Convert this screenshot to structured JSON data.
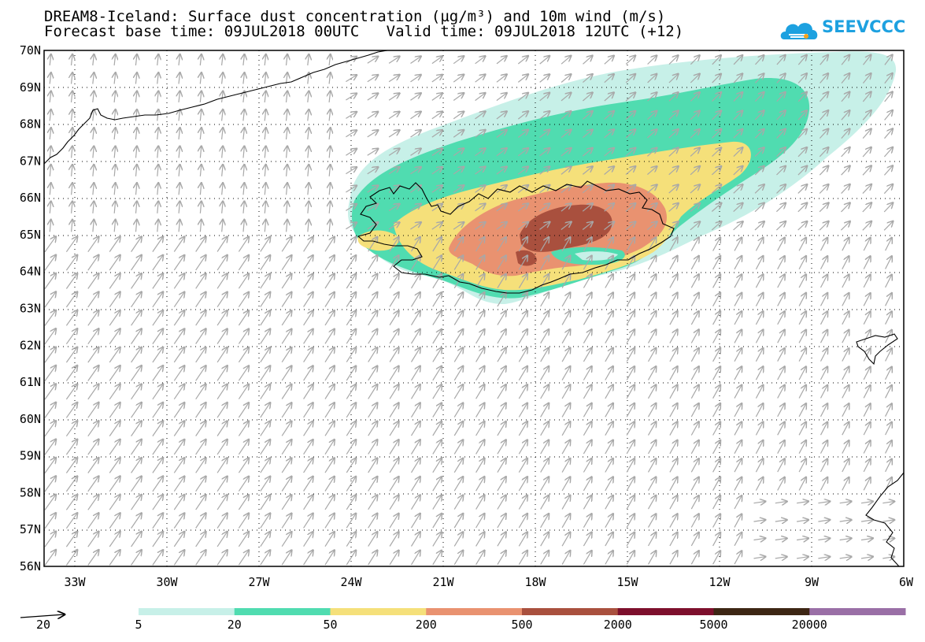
{
  "header": {
    "title_line1": "DREAM8-Iceland: Surface dust concentration (µg/m³) and 10m wind (m/s)",
    "title_line2": "Forecast base time: 09JUL2018 00UTC   Valid time: 09JUL2018 12UTC (+12)",
    "logo_text": "SEEVCCC"
  },
  "map": {
    "lat_labels": [
      "70N",
      "69N",
      "68N",
      "67N",
      "66N",
      "65N",
      "64N",
      "63N",
      "62N",
      "61N",
      "60N",
      "59N",
      "58N",
      "57N",
      "56N"
    ],
    "lon_labels": [
      "33W",
      "30W",
      "27W",
      "24W",
      "21W",
      "18W",
      "15W",
      "12W",
      "9W",
      "6W"
    ],
    "grid": "dotted",
    "wind_arrow_color": "#a8a8a8",
    "coastline_color": "#000000"
  },
  "legend": {
    "vector_reference": "20",
    "bins": [
      {
        "label": "5",
        "color": "#c7f0e8"
      },
      {
        "label": "20",
        "color": "#50dcb0"
      },
      {
        "label": "50",
        "color": "#f5e07a"
      },
      {
        "label": "200",
        "color": "#e99270"
      },
      {
        "label": "500",
        "color": "#a9503e"
      },
      {
        "label": "2000",
        "color": "#7d0f2c"
      },
      {
        "label": "5000",
        "color": "#3d2614"
      },
      {
        "label": "20000",
        "color": "#9a6fa6"
      }
    ]
  }
}
